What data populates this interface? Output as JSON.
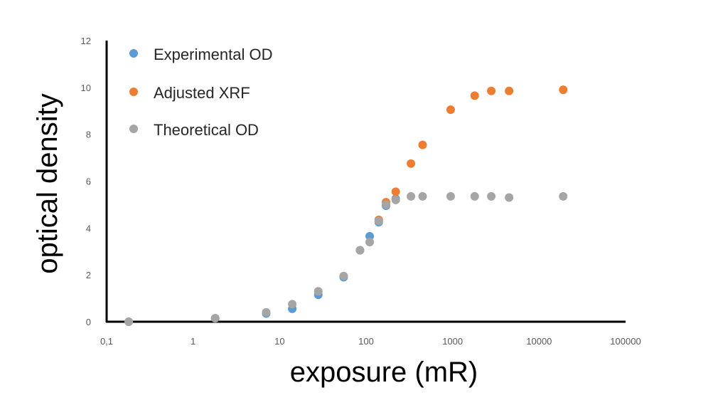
{
  "chart_data": {
    "type": "scatter",
    "xlabel": "exposure (mR)",
    "ylabel": "optical density",
    "x_scale": "log",
    "xlim": [
      0.1,
      100000
    ],
    "ylim": [
      0,
      12
    ],
    "x_tick_labels": [
      "0,1",
      "1",
      "10",
      "100",
      "1000",
      "10000",
      "100000"
    ],
    "y_tick_labels": [
      "0",
      "2",
      "4",
      "6",
      "8",
      "10",
      "12"
    ],
    "legend_placement": "top-left",
    "grid": false,
    "series": [
      {
        "name": "Experimental OD",
        "color": "#5b9bd5",
        "points": [
          {
            "x": 0.18,
            "y": 0.0
          },
          {
            "x": 1.8,
            "y": 0.15
          },
          {
            "x": 7,
            "y": 0.35
          },
          {
            "x": 14,
            "y": 0.55
          },
          {
            "x": 28,
            "y": 1.15
          },
          {
            "x": 55,
            "y": 1.9
          },
          {
            "x": 85,
            "y": 3.05
          },
          {
            "x": 110,
            "y": 3.65
          },
          {
            "x": 140,
            "y": 4.25
          },
          {
            "x": 170,
            "y": 4.95
          },
          {
            "x": 220,
            "y": 5.25
          }
        ]
      },
      {
        "name": "Adjusted XRF",
        "color": "#ed7d31",
        "points": [
          {
            "x": 140,
            "y": 4.35
          },
          {
            "x": 170,
            "y": 5.1
          },
          {
            "x": 220,
            "y": 5.55
          },
          {
            "x": 330,
            "y": 6.75
          },
          {
            "x": 450,
            "y": 7.55
          },
          {
            "x": 950,
            "y": 9.05
          },
          {
            "x": 1800,
            "y": 9.65
          },
          {
            "x": 2800,
            "y": 9.85
          },
          {
            "x": 4500,
            "y": 9.85
          },
          {
            "x": 19000,
            "y": 9.9
          }
        ]
      },
      {
        "name": "Theoretical OD",
        "color": "#a5a5a5",
        "points": [
          {
            "x": 0.18,
            "y": 0.0
          },
          {
            "x": 1.8,
            "y": 0.15
          },
          {
            "x": 7,
            "y": 0.4
          },
          {
            "x": 14,
            "y": 0.75
          },
          {
            "x": 28,
            "y": 1.3
          },
          {
            "x": 55,
            "y": 1.95
          },
          {
            "x": 85,
            "y": 3.05
          },
          {
            "x": 110,
            "y": 3.4
          },
          {
            "x": 140,
            "y": 4.3
          },
          {
            "x": 170,
            "y": 5.0
          },
          {
            "x": 220,
            "y": 5.2
          },
          {
            "x": 330,
            "y": 5.35
          },
          {
            "x": 450,
            "y": 5.35
          },
          {
            "x": 950,
            "y": 5.35
          },
          {
            "x": 1800,
            "y": 5.35
          },
          {
            "x": 2800,
            "y": 5.35
          },
          {
            "x": 4500,
            "y": 5.3
          },
          {
            "x": 19000,
            "y": 5.35
          }
        ]
      }
    ]
  }
}
